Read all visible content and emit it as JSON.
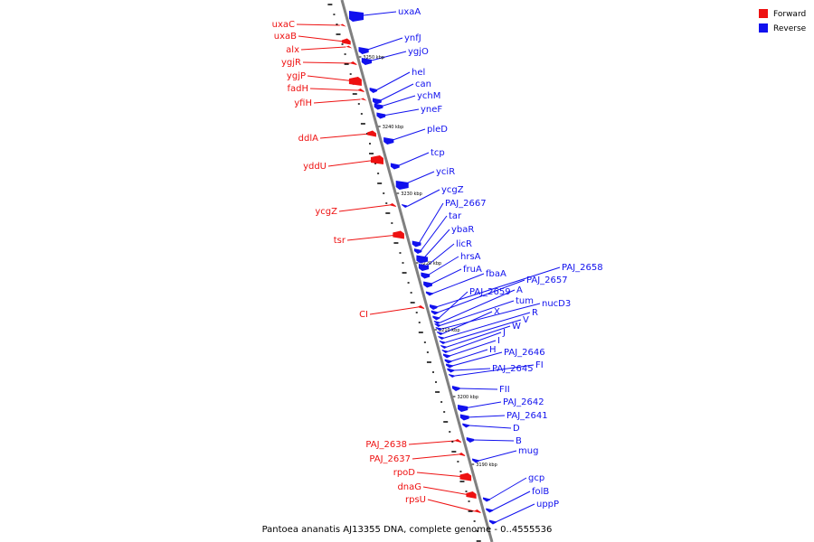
{
  "legend": [
    {
      "label": "Forward",
      "color": "#ee1111"
    },
    {
      "label": "Reverse",
      "color": "#1111ee"
    }
  ],
  "footer": "Pantoea ananatis AJ13355 DNA, complete genome - 0..4555536",
  "colors": {
    "forward": "#ee1111",
    "reverse": "#1111ee",
    "backbone": "#808080"
  },
  "tick_labels": [
    "3250 kbp",
    "3240 kbp",
    "3230 kbp",
    "3220 kbp",
    "3210 kbp",
    "3200 kbp",
    "3190 kbp"
  ],
  "reverse_genes": [
    "uxaA",
    "ynfJ",
    "ygjO",
    "hel",
    "can",
    "ychM",
    "yneF",
    "pleD",
    "tcp",
    "yciR",
    "ycgZ",
    "PAJ_2667",
    "tar",
    "ybaR",
    "licR",
    "hrsA",
    "fruA",
    "fbaA",
    "PAJ_2658",
    "PAJ_2657",
    "PAJ_2659",
    "A",
    "tum",
    "nucD3",
    "X",
    "R",
    "V",
    "W",
    "J",
    "I",
    "H",
    "PAJ_2646",
    "PAJ_2645",
    "FI",
    "FII",
    "PAJ_2642",
    "PAJ_2641",
    "D",
    "B",
    "mug",
    "gcp",
    "folB",
    "uppP"
  ],
  "forward_genes": [
    "uxaC",
    "uxaB",
    "alx",
    "ygjR",
    "ygjP",
    "fadH",
    "yfiH",
    "ddlA",
    "yddU",
    "ycgZ",
    "tsr",
    "CI",
    "PAJ_2638",
    "PAJ_2637",
    "rpoD",
    "dnaG",
    "rpsU"
  ]
}
